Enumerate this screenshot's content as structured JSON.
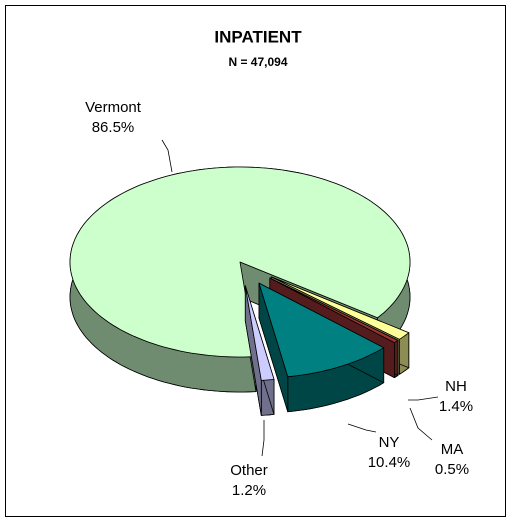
{
  "chart_data": {
    "type": "pie",
    "title": "INPATIENT",
    "subtitle": "N = 47,094",
    "categories": [
      "Vermont",
      "NH",
      "MA",
      "NY",
      "Other"
    ],
    "values": [
      86.5,
      1.4,
      0.5,
      10.4,
      1.2
    ],
    "value_labels": [
      "86.5%",
      "1.4%",
      "0.5%",
      "10.4%",
      "1.2%"
    ],
    "colors": [
      "#ccffcc",
      "#ffff99",
      "#993333",
      "#008080",
      "#ccccff"
    ]
  }
}
